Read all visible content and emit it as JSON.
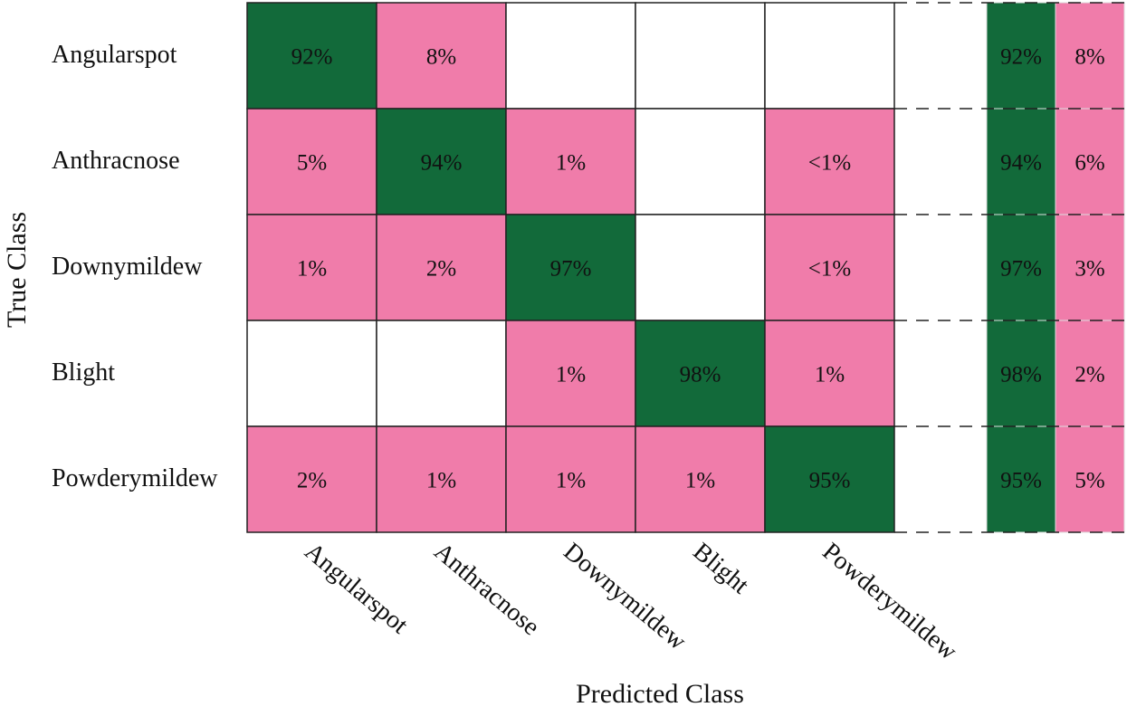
{
  "chart_data": {
    "type": "heatmap",
    "xlabel": "Predicted Class",
    "ylabel": "True Class",
    "classes": [
      "Angularspot",
      "Anthracnose",
      "Downymildew",
      "Blight",
      "Powderymildew"
    ],
    "matrix": [
      [
        "92%",
        "8%",
        "",
        "",
        ""
      ],
      [
        "5%",
        "94%",
        "1%",
        "",
        "<1%"
      ],
      [
        "1%",
        "2%",
        "97%",
        "",
        "<1%"
      ],
      [
        "",
        "",
        "1%",
        "98%",
        "1%"
      ],
      [
        "2%",
        "1%",
        "1%",
        "1%",
        "95%"
      ]
    ],
    "summary_correct": [
      "92%",
      "94%",
      "97%",
      "98%",
      "95%"
    ],
    "summary_incorrect": [
      "8%",
      "6%",
      "3%",
      "2%",
      "5%"
    ],
    "colors": {
      "correct": "#126a3a",
      "incorrect": "#f07caa",
      "empty": "#ffffff"
    }
  }
}
